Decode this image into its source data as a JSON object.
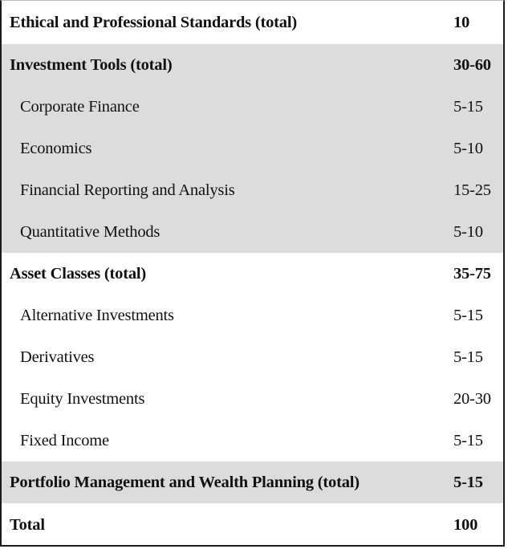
{
  "rows": [
    {
      "label": "Ethical and Professional Standards (total)",
      "value": "10"
    },
    {
      "label": "Investment Tools (total)",
      "value": "30-60"
    },
    {
      "label": "Corporate Finance",
      "value": "5-15"
    },
    {
      "label": "Economics",
      "value": "5-10"
    },
    {
      "label": "Financial Reporting and Analysis",
      "value": "15-25"
    },
    {
      "label": "Quantitative Methods",
      "value": "5-10"
    },
    {
      "label": "Asset Classes (total)",
      "value": "35-75"
    },
    {
      "label": "Alternative Investments",
      "value": "5-15"
    },
    {
      "label": "Derivatives",
      "value": "5-15"
    },
    {
      "label": "Equity Investments",
      "value": "20-30"
    },
    {
      "label": "Fixed Income",
      "value": "5-15"
    },
    {
      "label": "Portfolio Management and Wealth Planning (total)",
      "value": "5-15"
    },
    {
      "label": "Total",
      "value": "100"
    }
  ]
}
